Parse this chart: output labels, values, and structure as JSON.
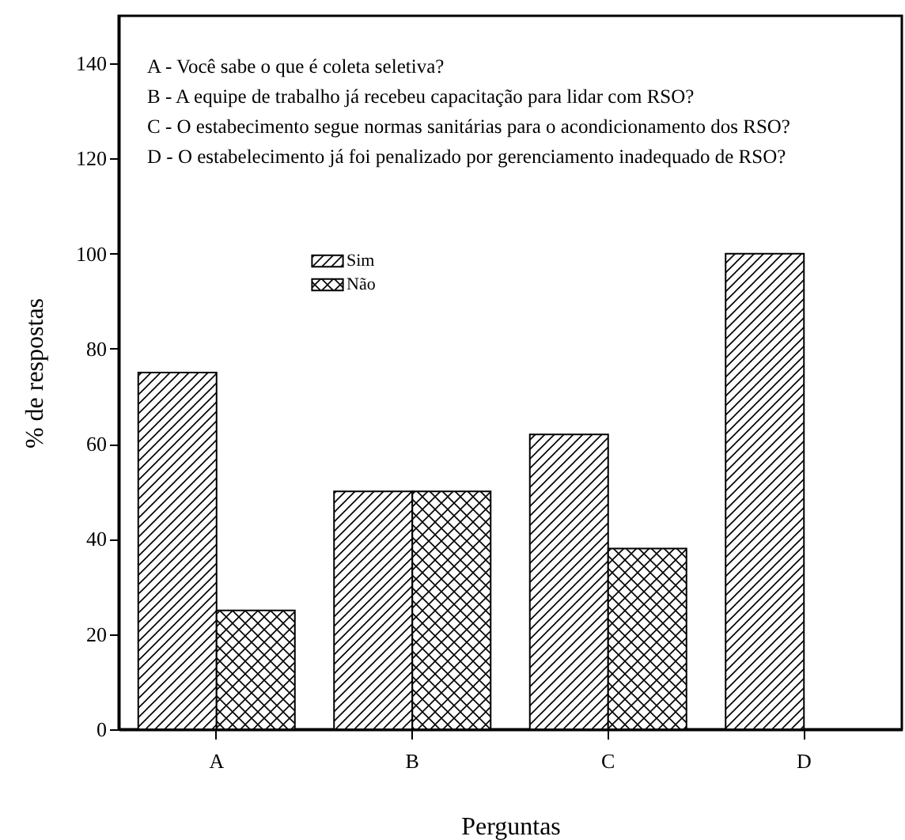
{
  "chart_data": {
    "type": "bar",
    "xlabel": "Perguntas",
    "ylabel": "% de respostas",
    "categories": [
      "A",
      "B",
      "C",
      "D"
    ],
    "series": [
      {
        "name": "Sim",
        "color": "#000000",
        "values": [
          75,
          50,
          62,
          100
        ]
      },
      {
        "name": "Não",
        "color": "#000000",
        "values": [
          25,
          50,
          38,
          0
        ]
      }
    ],
    "ylim": [
      0,
      150
    ],
    "yticks": [
      0,
      20,
      40,
      60,
      80,
      100,
      120,
      140
    ],
    "legend": "top left",
    "annotations": [
      "A - Você sabe o que é coleta seletiva?",
      "B - A equipe de trabalho já recebeu capacitação para lidar com RSO?",
      "C - O estabecimento segue normas sanitárias para o acondicionamento dos RSO?",
      "D - O estabelecimento já foi penalizado por gerenciamento inadequado de RSO?"
    ]
  }
}
